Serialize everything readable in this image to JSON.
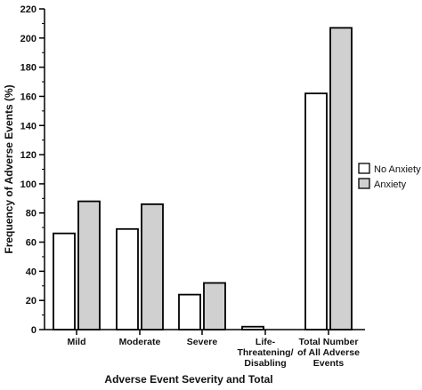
{
  "chart_data": {
    "type": "bar",
    "title": "",
    "xlabel": "Adverse Event Severity and Total",
    "ylabel": "Frequency of Adverse Events (%)",
    "ylim": [
      0,
      220
    ],
    "yticks": [
      0,
      20,
      40,
      60,
      80,
      100,
      120,
      140,
      160,
      180,
      200,
      220
    ],
    "categories": [
      [
        "Mild"
      ],
      [
        "Moderate"
      ],
      [
        "Severe"
      ],
      [
        "Life-",
        "Threatening/",
        "Disabling"
      ],
      [
        "Total Number",
        "of All Adverse",
        "Events"
      ]
    ],
    "series": [
      {
        "name": "No Anxiety",
        "values": [
          66,
          69,
          24,
          2,
          162
        ],
        "color": "#ffffff"
      },
      {
        "name": "Anxiety",
        "values": [
          88,
          86,
          32,
          0,
          207
        ],
        "color": "#d0d0d0"
      }
    ],
    "grid": false,
    "legend_position": "right"
  }
}
